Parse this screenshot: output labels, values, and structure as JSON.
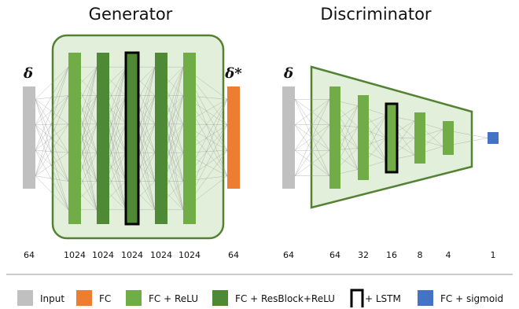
{
  "generator": {
    "title": "Generator",
    "input_symbol": "δ",
    "output_symbol": "δ*",
    "sizes": [
      "64",
      "1024",
      "1024",
      "1024",
      "1024",
      "1024",
      "64"
    ]
  },
  "discriminator": {
    "title": "Discriminator",
    "input_symbol": "δ",
    "sizes": [
      "64",
      "64",
      "32",
      "16",
      "8",
      "4",
      "1"
    ]
  },
  "legend": [
    {
      "label": "Input",
      "color": "#c0c0c0"
    },
    {
      "label": "FC",
      "color": "#ed7d31"
    },
    {
      "label": "FC + ReLU",
      "color": "#70ad47"
    },
    {
      "label": "FC + ResBlock+ReLU",
      "color": "#4e8a35"
    },
    {
      "label": "+ LSTM",
      "color": "#000000"
    },
    {
      "label": "FC + sigmoid",
      "color": "#4472c4"
    }
  ],
  "colors": {
    "input": "#c0c0c0",
    "fc": "#ed7d31",
    "fc_relu": "#70ad47",
    "fc_resblock_relu": "#4e8a35",
    "sigmoid": "#4472c4",
    "container_fill": "#e2efda",
    "container_stroke": "#548235"
  }
}
